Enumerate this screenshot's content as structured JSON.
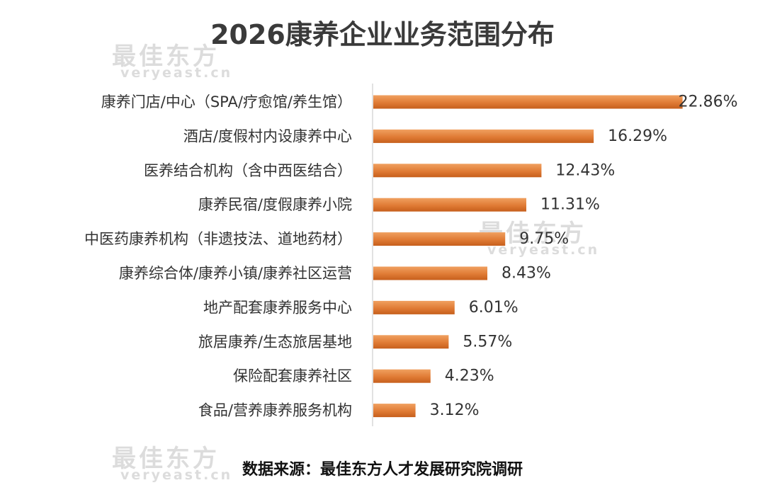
{
  "watermark": {
    "cn": "最佳东方",
    "en": "veryeast.cn"
  },
  "chart_data": {
    "type": "bar",
    "orientation": "horizontal",
    "title": "2026康养企业业务范围分布",
    "categories": [
      "康养门店/中心（SPA/疗愈馆/养生馆）",
      "酒店/度假村内设康养中心",
      "医养结合机构（含中西医结合）",
      "康养民宿/度假康养小院",
      "中医药康养机构（非遗技法、道地药材）",
      "康养综合体/康养小镇/康养社区运营",
      "地产配套康养服务中心",
      "旅居康养/生态旅居基地",
      "保险配套康养社区",
      "食品/营养康养服务机构"
    ],
    "values": [
      22.86,
      16.29,
      12.43,
      11.31,
      9.75,
      8.43,
      6.01,
      5.57,
      4.23,
      3.12
    ],
    "value_labels": [
      "22.86%",
      "16.29%",
      "12.43%",
      "11.31%",
      "9.75%",
      "8.43%",
      "6.01%",
      "5.57%",
      "4.23%",
      "3.12%"
    ],
    "source": "数据来源：最佳东方人才发展研究院调研",
    "grid": false,
    "legend": "none",
    "bar_color": "#e07b35"
  }
}
